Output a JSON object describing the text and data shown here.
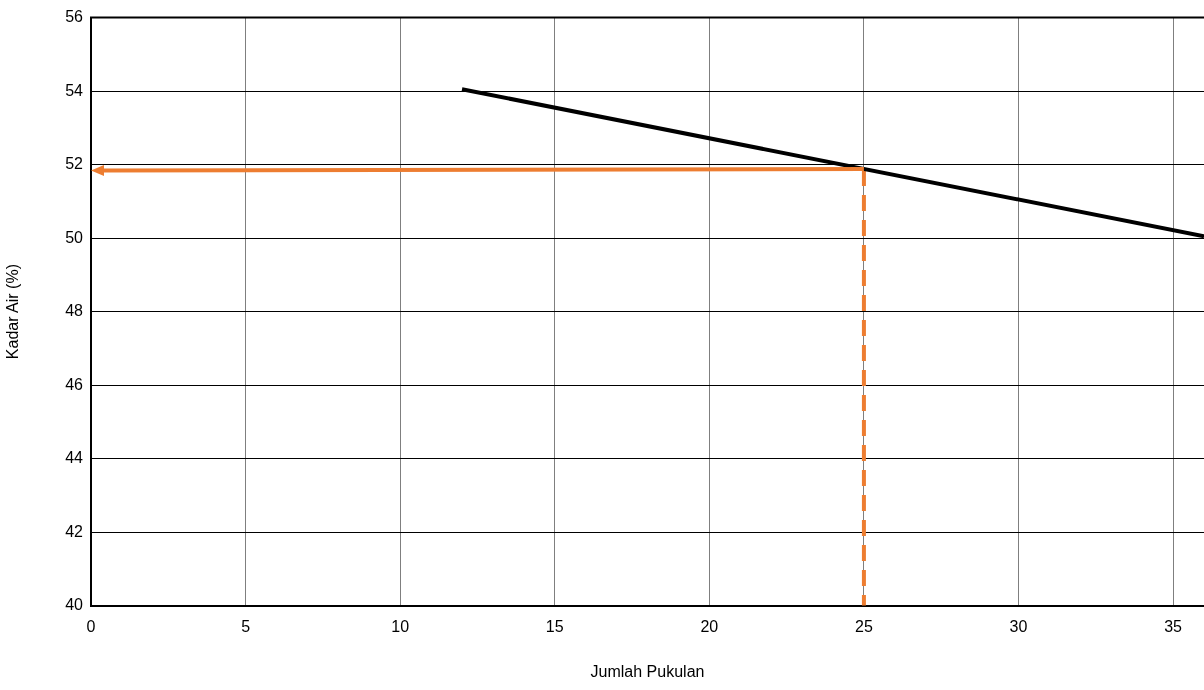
{
  "chart_data": {
    "type": "line",
    "xlabel": "Jumlah Pukulan",
    "ylabel": "Kadar Air (%)",
    "xlim": [
      0,
      36
    ],
    "xticks": [
      0,
      5,
      10,
      15,
      20,
      25,
      30,
      35
    ],
    "ylim": [
      40,
      56
    ],
    "yticks": [
      40,
      42,
      44,
      46,
      48,
      50,
      52,
      54,
      56
    ],
    "grid": true,
    "legend": false,
    "marker": "none",
    "series": [
      {
        "color": "#000000",
        "x": [
          12,
          36
        ],
        "values": [
          54.05,
          50.05
        ],
        "line_style": "solid"
      },
      {
        "color": "#ed7d31",
        "x": [
          25,
          25
        ],
        "values": [
          51.85,
          40
        ],
        "line_style": "dashed"
      }
    ]
  }
}
